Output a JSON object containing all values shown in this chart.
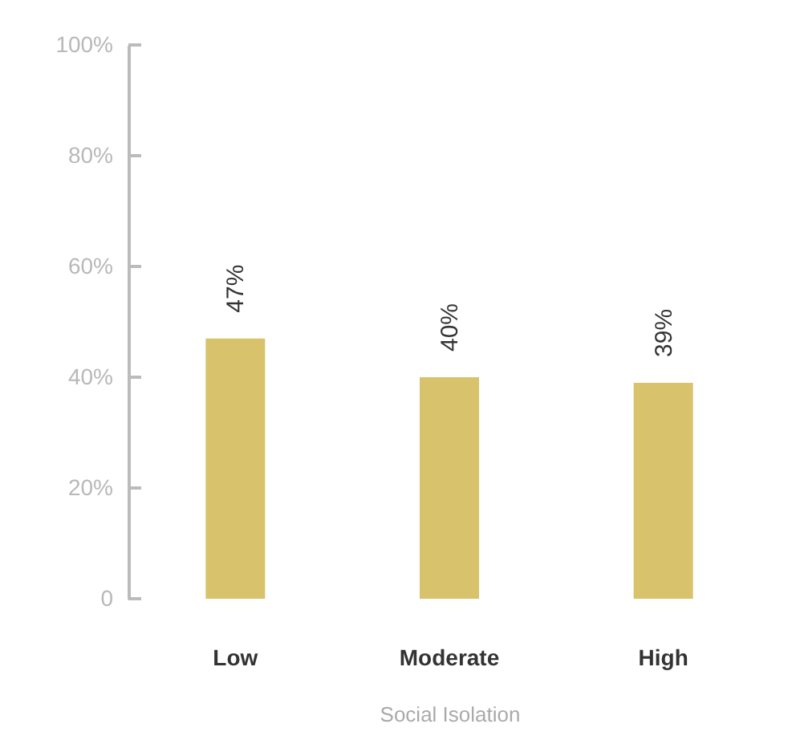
{
  "chart_data": {
    "type": "bar",
    "xlabel": "Social Isolation",
    "categories": [
      "Low",
      "Moderate",
      "High"
    ],
    "values": [
      47,
      40,
      39
    ],
    "color": "#d8c36c",
    "value_labels": [
      "47%",
      "40%",
      "39%"
    ],
    "ylim": [
      0,
      100
    ],
    "yticks": [
      {
        "value": 0,
        "label": "0"
      },
      {
        "value": 20,
        "label": "20%"
      },
      {
        "value": 40,
        "label": "40%"
      },
      {
        "value": 60,
        "label": "60%"
      },
      {
        "value": 80,
        "label": "80%"
      },
      {
        "value": 100,
        "label": "100%"
      }
    ],
    "grid": false
  }
}
